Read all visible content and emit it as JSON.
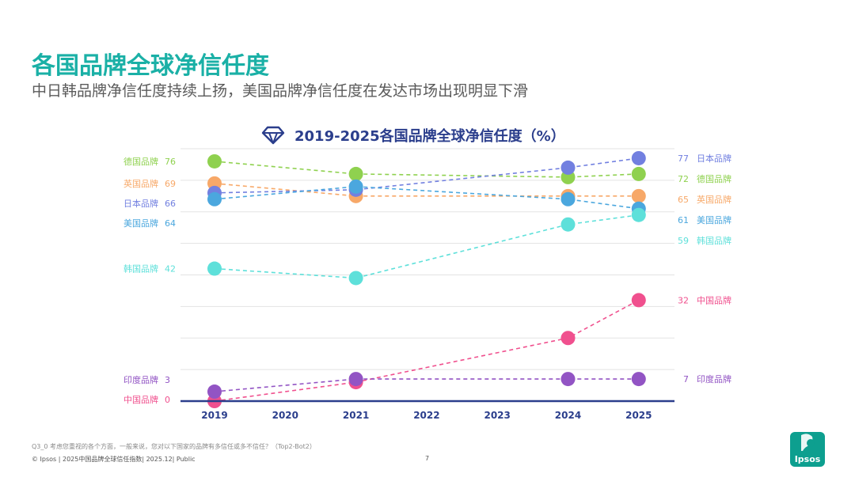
{
  "page": {
    "title": "各国品牌全球净信任度",
    "subtitle": "中日韩品牌净信任度持续上扬，美国品牌净信任度在发达市场出现明显下滑",
    "footer_note": "Q3_0 考虑您重视的各个方面，一般来说，您对以下国家的品牌有多信任或多不信任？（Top2-Bot2）",
    "footer_copy": "© Ipsos | 2025中国品牌全球信任指数| 2025.12| Public",
    "page_number": "7",
    "logo_text": "Ipsos",
    "logo_color": "#0d9f8f"
  },
  "chart_data": {
    "type": "line",
    "title": "2019-2025各国品牌全球净信任度（%）",
    "title_icon": "diamond-icon",
    "x": [
      "2019",
      "2020",
      "2021",
      "2022",
      "2023",
      "2024",
      "2025"
    ],
    "ylim": [
      0,
      80
    ],
    "grid": true,
    "series": [
      {
        "name": "德国品牌",
        "color": "#8fd14f",
        "points": [
          [
            2019,
            76
          ],
          [
            2021,
            72
          ],
          [
            2024,
            71
          ],
          [
            2025,
            72
          ]
        ],
        "start_label": "76",
        "end_label": "72"
      },
      {
        "name": "英国品牌",
        "color": "#f7a868",
        "points": [
          [
            2019,
            69
          ],
          [
            2021,
            65
          ],
          [
            2024,
            65
          ],
          [
            2025,
            65
          ]
        ],
        "start_label": "69",
        "end_label": "65"
      },
      {
        "name": "日本品牌",
        "color": "#7280e0",
        "points": [
          [
            2019,
            66
          ],
          [
            2021,
            67
          ],
          [
            2024,
            74
          ],
          [
            2025,
            77
          ]
        ],
        "start_label": "66",
        "end_label": "77"
      },
      {
        "name": "美国品牌",
        "color": "#4ba7de",
        "points": [
          [
            2019,
            64
          ],
          [
            2021,
            68
          ],
          [
            2024,
            64
          ],
          [
            2025,
            61
          ]
        ],
        "start_label": "64",
        "end_label": "61"
      },
      {
        "name": "韩国品牌",
        "color": "#5ee0da",
        "points": [
          [
            2019,
            42
          ],
          [
            2021,
            39
          ],
          [
            2024,
            56
          ],
          [
            2025,
            59
          ]
        ],
        "start_label": "42",
        "end_label": "59"
      },
      {
        "name": "中国品牌",
        "color": "#f0508e",
        "points": [
          [
            2019,
            0
          ],
          [
            2021,
            6
          ],
          [
            2024,
            20
          ],
          [
            2025,
            32
          ]
        ],
        "start_label": "0",
        "end_label": "32"
      },
      {
        "name": "印度品牌",
        "color": "#9254c4",
        "points": [
          [
            2019,
            3
          ],
          [
            2021,
            7
          ],
          [
            2024,
            7
          ],
          [
            2025,
            7
          ]
        ],
        "start_label": "3",
        "end_label": "7"
      }
    ]
  }
}
